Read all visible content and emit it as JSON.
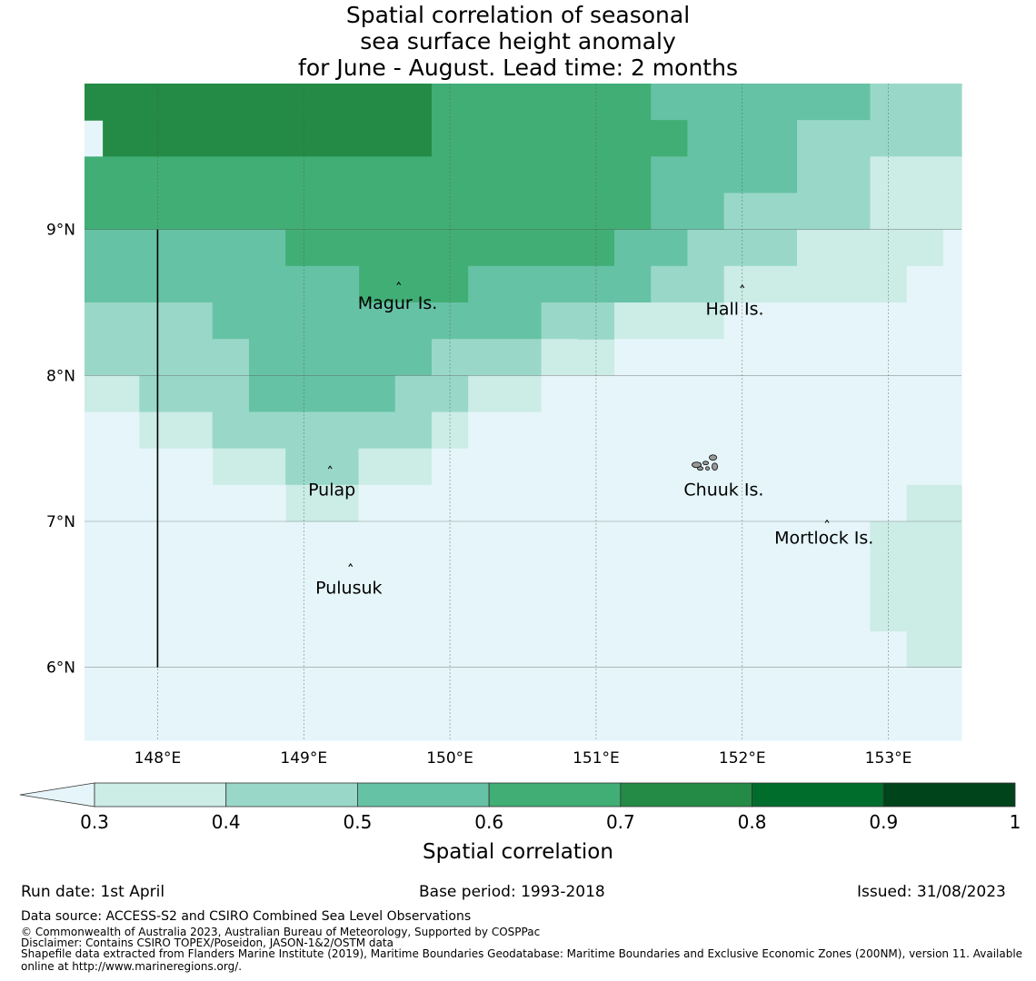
{
  "title": {
    "line1": "Spatial correlation of seasonal",
    "line2": "sea surface height anomaly",
    "line3": "for June - August. Lead time: 2 months"
  },
  "map": {
    "lon_range": [
      147.5,
      153.5
    ],
    "lat_range": [
      5.5,
      10.0
    ],
    "lon_ticks": [
      148,
      149,
      150,
      151,
      152,
      153
    ],
    "lon_tick_labels": [
      "148°E",
      "149°E",
      "150°E",
      "151°E",
      "152°E",
      "153°E"
    ],
    "lat_ticks": [
      6,
      7,
      8,
      9
    ],
    "lat_tick_labels": [
      "6°N",
      "7°N",
      "8°N",
      "9°N"
    ],
    "grid": true,
    "cell_size_deg": 0.25,
    "grid_origin": {
      "lon": 147.375,
      "lat": 10.0
    },
    "color_classes": [
      {
        "min": null,
        "max": 0.3,
        "color": "#e5f5f9"
      },
      {
        "min": 0.3,
        "max": 0.4,
        "color": "#ccece6"
      },
      {
        "min": 0.4,
        "max": 0.5,
        "color": "#99d8c9"
      },
      {
        "min": 0.5,
        "max": 0.6,
        "color": "#66c2a4"
      },
      {
        "min": 0.6,
        "max": 0.7,
        "color": "#41ae76"
      },
      {
        "min": 0.7,
        "max": 0.8,
        "color": "#238b45"
      },
      {
        "min": 0.8,
        "max": 0.9,
        "color": "#006d2c"
      },
      {
        "min": 0.9,
        "max": 1.0,
        "color": "#00441b"
      }
    ],
    "class_index_rows": [
      "555555555444444433322",
      "455555555544444443322",
      "444444444444444333221",
      "444444444444444322211",
      "433333444444444322211",
      "333333344444443322111",
      "333333334444433221110",
      "333333333334333211110",
      "222233333333322110000",
      "222223333332221000000",
      "122222333222211000000",
      "112222233322100000000",
      "001122222221000000000",
      "000011222222100000000",
      "000000112211000000000",
      "000000011110000000000",
      "000000001110000000000",
      "000000000000000000000",
      "000000000000000000000",
      "000000000000000000000",
      "000000000000000000000",
      "000000000000000000000",
      "000000000000000000000",
      "000000000000000000000",
      "000000000000000000000",
      "000000000000000000000",
      "000000000000000000000",
      "000000000000000000000",
      "000000000000000000000",
      "000000000000000000000",
      "000000000000000000000",
      "000000000000000000000",
      "000000000000000000000",
      "000000000000000000000",
      "000000000000000000000",
      "000000000000000000000",
      "000000000000000000000",
      "000000000000000000000"
    ],
    "overrides": [
      {
        "lon0": 147.5,
        "lon1": 149.875,
        "lat0": 9.75,
        "lat1": 10.0,
        "class": 5
      },
      {
        "lon0": 147.625,
        "lon1": 150.125,
        "lat0": 9.5,
        "lat1": 9.75,
        "class": 5
      },
      {
        "lon0": 149.875,
        "lon1": 151.375,
        "lat0": 9.5,
        "lat1": 10.0,
        "class": 4
      },
      {
        "lon0": 151.375,
        "lon1": 152.875,
        "lat0": 9.75,
        "lat1": 10.0,
        "class": 3
      },
      {
        "lon0": 152.875,
        "lon1": 153.5,
        "lat0": 9.75,
        "lat1": 10.0,
        "class": 2
      },
      {
        "lon0": 151.125,
        "lon1": 151.625,
        "lat0": 9.5,
        "lat1": 9.75,
        "class": 4
      },
      {
        "lon0": 151.625,
        "lon1": 152.375,
        "lat0": 9.5,
        "lat1": 9.75,
        "class": 3
      },
      {
        "lon0": 152.375,
        "lon1": 153.5,
        "lat0": 9.5,
        "lat1": 9.75,
        "class": 2
      },
      {
        "lon0": 147.5,
        "lon1": 151.375,
        "lat0": 9.0,
        "lat1": 9.5,
        "class": 4
      },
      {
        "lon0": 151.375,
        "lon1": 151.875,
        "lat0": 9.0,
        "lat1": 9.5,
        "class": 3
      },
      {
        "lon0": 151.875,
        "lon1": 152.375,
        "lat0": 9.25,
        "lat1": 9.5,
        "class": 3
      },
      {
        "lon0": 152.375,
        "lon1": 152.875,
        "lat0": 9.25,
        "lat1": 9.5,
        "class": 2
      },
      {
        "lon0": 152.875,
        "lon1": 153.5,
        "lat0": 9.25,
        "lat1": 9.5,
        "class": 1
      },
      {
        "lon0": 151.875,
        "lon1": 152.875,
        "lat0": 9.0,
        "lat1": 9.25,
        "class": 2
      },
      {
        "lon0": 152.875,
        "lon1": 153.5,
        "lat0": 9.0,
        "lat1": 9.25,
        "class": 1
      },
      {
        "lon0": 147.5,
        "lon1": 148.375,
        "lat0": 8.5,
        "lat1": 9.0,
        "class": 3
      },
      {
        "lon0": 148.375,
        "lon1": 148.875,
        "lat0": 8.5,
        "lat1": 9.0,
        "class": 3
      },
      {
        "lon0": 148.875,
        "lon1": 149.375,
        "lat0": 8.75,
        "lat1": 9.0,
        "class": 4
      },
      {
        "lon0": 149.375,
        "lon1": 150.125,
        "lat0": 8.5,
        "lat1": 9.0,
        "class": 4
      },
      {
        "lon0": 150.125,
        "lon1": 150.375,
        "lat0": 8.75,
        "lat1": 9.0,
        "class": 4
      },
      {
        "lon0": 150.375,
        "lon1": 151.125,
        "lat0": 8.75,
        "lat1": 9.0,
        "class": 4
      },
      {
        "lon0": 148.875,
        "lon1": 149.375,
        "lat0": 8.5,
        "lat1": 8.75,
        "class": 3
      },
      {
        "lon0": 150.125,
        "lon1": 151.375,
        "lat0": 8.5,
        "lat1": 8.75,
        "class": 3
      },
      {
        "lon0": 151.125,
        "lon1": 151.625,
        "lat0": 8.75,
        "lat1": 9.0,
        "class": 3
      },
      {
        "lon0": 151.375,
        "lon1": 151.875,
        "lat0": 8.5,
        "lat1": 8.75,
        "class": 2
      },
      {
        "lon0": 151.625,
        "lon1": 152.375,
        "lat0": 8.75,
        "lat1": 9.0,
        "class": 2
      },
      {
        "lon0": 152.375,
        "lon1": 153.375,
        "lat0": 8.75,
        "lat1": 9.0,
        "class": 1
      },
      {
        "lon0": 151.875,
        "lon1": 153.125,
        "lat0": 8.5,
        "lat1": 8.75,
        "class": 1
      },
      {
        "lon0": 153.375,
        "lon1": 153.5,
        "lat0": 8.75,
        "lat1": 9.0,
        "class": 0
      },
      {
        "lon0": 153.125,
        "lon1": 153.5,
        "lat0": 8.5,
        "lat1": 8.75,
        "class": 0
      },
      {
        "lon0": 147.5,
        "lon1": 148.375,
        "lat0": 8.0,
        "lat1": 8.5,
        "class": 2
      },
      {
        "lon0": 148.375,
        "lon1": 148.625,
        "lat0": 8.25,
        "lat1": 8.5,
        "class": 3
      },
      {
        "lon0": 148.375,
        "lon1": 148.625,
        "lat0": 8.0,
        "lat1": 8.25,
        "class": 2
      },
      {
        "lon0": 148.625,
        "lon1": 150.375,
        "lat0": 8.0,
        "lat1": 8.5,
        "class": 3
      },
      {
        "lon0": 150.375,
        "lon1": 150.625,
        "lat0": 8.25,
        "lat1": 8.5,
        "class": 3
      },
      {
        "lon0": 149.875,
        "lon1": 150.625,
        "lat0": 8.0,
        "lat1": 8.25,
        "class": 2
      },
      {
        "lon0": 150.625,
        "lon1": 150.875,
        "lat0": 8.25,
        "lat1": 8.5,
        "class": 2
      },
      {
        "lon0": 150.625,
        "lon1": 151.125,
        "lat0": 8.0,
        "lat1": 8.25,
        "class": 1
      },
      {
        "lon0": 150.875,
        "lon1": 151.375,
        "lat0": 8.25,
        "lat1": 8.5,
        "class": 2
      },
      {
        "lon0": 151.125,
        "lon1": 151.875,
        "lat0": 8.25,
        "lat1": 8.5,
        "class": 1
      },
      {
        "lon0": 151.125,
        "lon1": 153.5,
        "lat0": 8.0,
        "lat1": 8.25,
        "class": 0
      },
      {
        "lon0": 151.875,
        "lon1": 153.5,
        "lat0": 8.25,
        "lat1": 8.5,
        "class": 0
      },
      {
        "lon0": 147.5,
        "lon1": 147.875,
        "lat0": 7.75,
        "lat1": 8.0,
        "class": 1
      },
      {
        "lon0": 147.875,
        "lon1": 148.625,
        "lat0": 7.75,
        "lat1": 8.0,
        "class": 2
      },
      {
        "lon0": 148.625,
        "lon1": 149.625,
        "lat0": 7.75,
        "lat1": 8.0,
        "class": 3
      },
      {
        "lon0": 149.625,
        "lon1": 150.125,
        "lat0": 7.75,
        "lat1": 8.0,
        "class": 2
      },
      {
        "lon0": 150.125,
        "lon1": 150.625,
        "lat0": 7.75,
        "lat1": 8.0,
        "class": 1
      },
      {
        "lon0": 150.625,
        "lon1": 153.5,
        "lat0": 7.75,
        "lat1": 8.0,
        "class": 0
      },
      {
        "lon0": 147.5,
        "lon1": 147.875,
        "lat0": 7.5,
        "lat1": 7.75,
        "class": 0
      },
      {
        "lon0": 147.875,
        "lon1": 148.375,
        "lat0": 7.5,
        "lat1": 7.75,
        "class": 1
      },
      {
        "lon0": 148.375,
        "lon1": 149.875,
        "lat0": 7.5,
        "lat1": 7.75,
        "class": 2
      },
      {
        "lon0": 149.875,
        "lon1": 150.125,
        "lat0": 7.5,
        "lat1": 7.75,
        "class": 1
      },
      {
        "lon0": 150.125,
        "lon1": 153.5,
        "lat0": 7.5,
        "lat1": 7.75,
        "class": 0
      },
      {
        "lon0": 148.375,
        "lon1": 148.875,
        "lat0": 7.25,
        "lat1": 7.5,
        "class": 1
      },
      {
        "lon0": 148.875,
        "lon1": 149.375,
        "lat0": 7.25,
        "lat1": 7.5,
        "class": 2
      },
      {
        "lon0": 149.375,
        "lon1": 149.875,
        "lat0": 7.25,
        "lat1": 7.5,
        "class": 1
      },
      {
        "lon0": 147.5,
        "lon1": 148.375,
        "lat0": 7.25,
        "lat1": 7.5,
        "class": 0
      },
      {
        "lon0": 149.875,
        "lon1": 153.5,
        "lat0": 7.25,
        "lat1": 7.5,
        "class": 0
      },
      {
        "lon0": 148.875,
        "lon1": 149.375,
        "lat0": 7.0,
        "lat1": 7.25,
        "class": 1
      },
      {
        "lon0": 147.5,
        "lon1": 148.875,
        "lat0": 6.0,
        "lat1": 7.25,
        "class": 0
      },
      {
        "lon0": 149.375,
        "lon1": 153.125,
        "lat0": 6.0,
        "lat1": 7.25,
        "class": 0
      },
      {
        "lon0": 153.125,
        "lon1": 153.5,
        "lat0": 6.0,
        "lat1": 7.25,
        "class": 1
      },
      {
        "lon0": 152.875,
        "lon1": 153.125,
        "lat0": 6.25,
        "lat1": 7.0,
        "class": 1
      },
      {
        "lon0": 147.5,
        "lon1": 153.5,
        "lat0": 5.5,
        "lat1": 6.0,
        "class": 0
      }
    ],
    "places": [
      {
        "name": "Magur Is.",
        "lon": 149.65,
        "lat": 8.62,
        "label_lon": 149.37,
        "label_lat": 8.5
      },
      {
        "name": "Hall Is.",
        "lon": 152.0,
        "lat": 8.6,
        "label_lon": 151.75,
        "label_lat": 8.46
      },
      {
        "name": "Pulap",
        "lon": 149.18,
        "lat": 7.36,
        "label_lon": 149.03,
        "label_lat": 7.22
      },
      {
        "name": "Chuuk Is.",
        "lon": 151.75,
        "lat": 7.4,
        "label_lon": 151.6,
        "label_lat": 7.22
      },
      {
        "name": "Mortlock Is.",
        "lon": 152.58,
        "lat": 6.99,
        "label_lon": 152.22,
        "label_lat": 6.89
      },
      {
        "name": "Pulusuk",
        "lon": 149.32,
        "lat": 6.69,
        "label_lon": 149.08,
        "label_lat": 6.55
      }
    ],
    "boundary_line": {
      "lon": 148.0,
      "lat0": 6.0,
      "lat1": 9.0
    }
  },
  "colorbar": {
    "label": "Spatial correlation",
    "ticks": [
      "0.3",
      "0.4",
      "0.5",
      "0.6",
      "0.7",
      "0.8",
      "0.9",
      "1"
    ],
    "under_color": "#e5f5f9",
    "extend": "min"
  },
  "footer": {
    "run_date": "Run date: 1st April",
    "base_period": "Base period: 1993-2018",
    "issued": "Issued: 31/08/2023",
    "data_source": "Data source: ACCESS-S2 and CSIRO Combined Sea Level Observations",
    "copyright": "© Commonwealth of Australia 2023, Australian Bureau of Meteorology, Supported by COSPPac",
    "disclaimer": "Disclaimer: Contains CSIRO TOPEX/Poseidon, JASON-1&2/OSTM data",
    "shapefile_line1": "Shapefile data extracted from Flanders Marine Institute (2019), Maritime Boundaries Geodatabase: Maritime Boundaries and Exclusive Economic Zones (200NM), version 11. Available",
    "shapefile_line2": "online at http://www.marineregions.org/."
  }
}
